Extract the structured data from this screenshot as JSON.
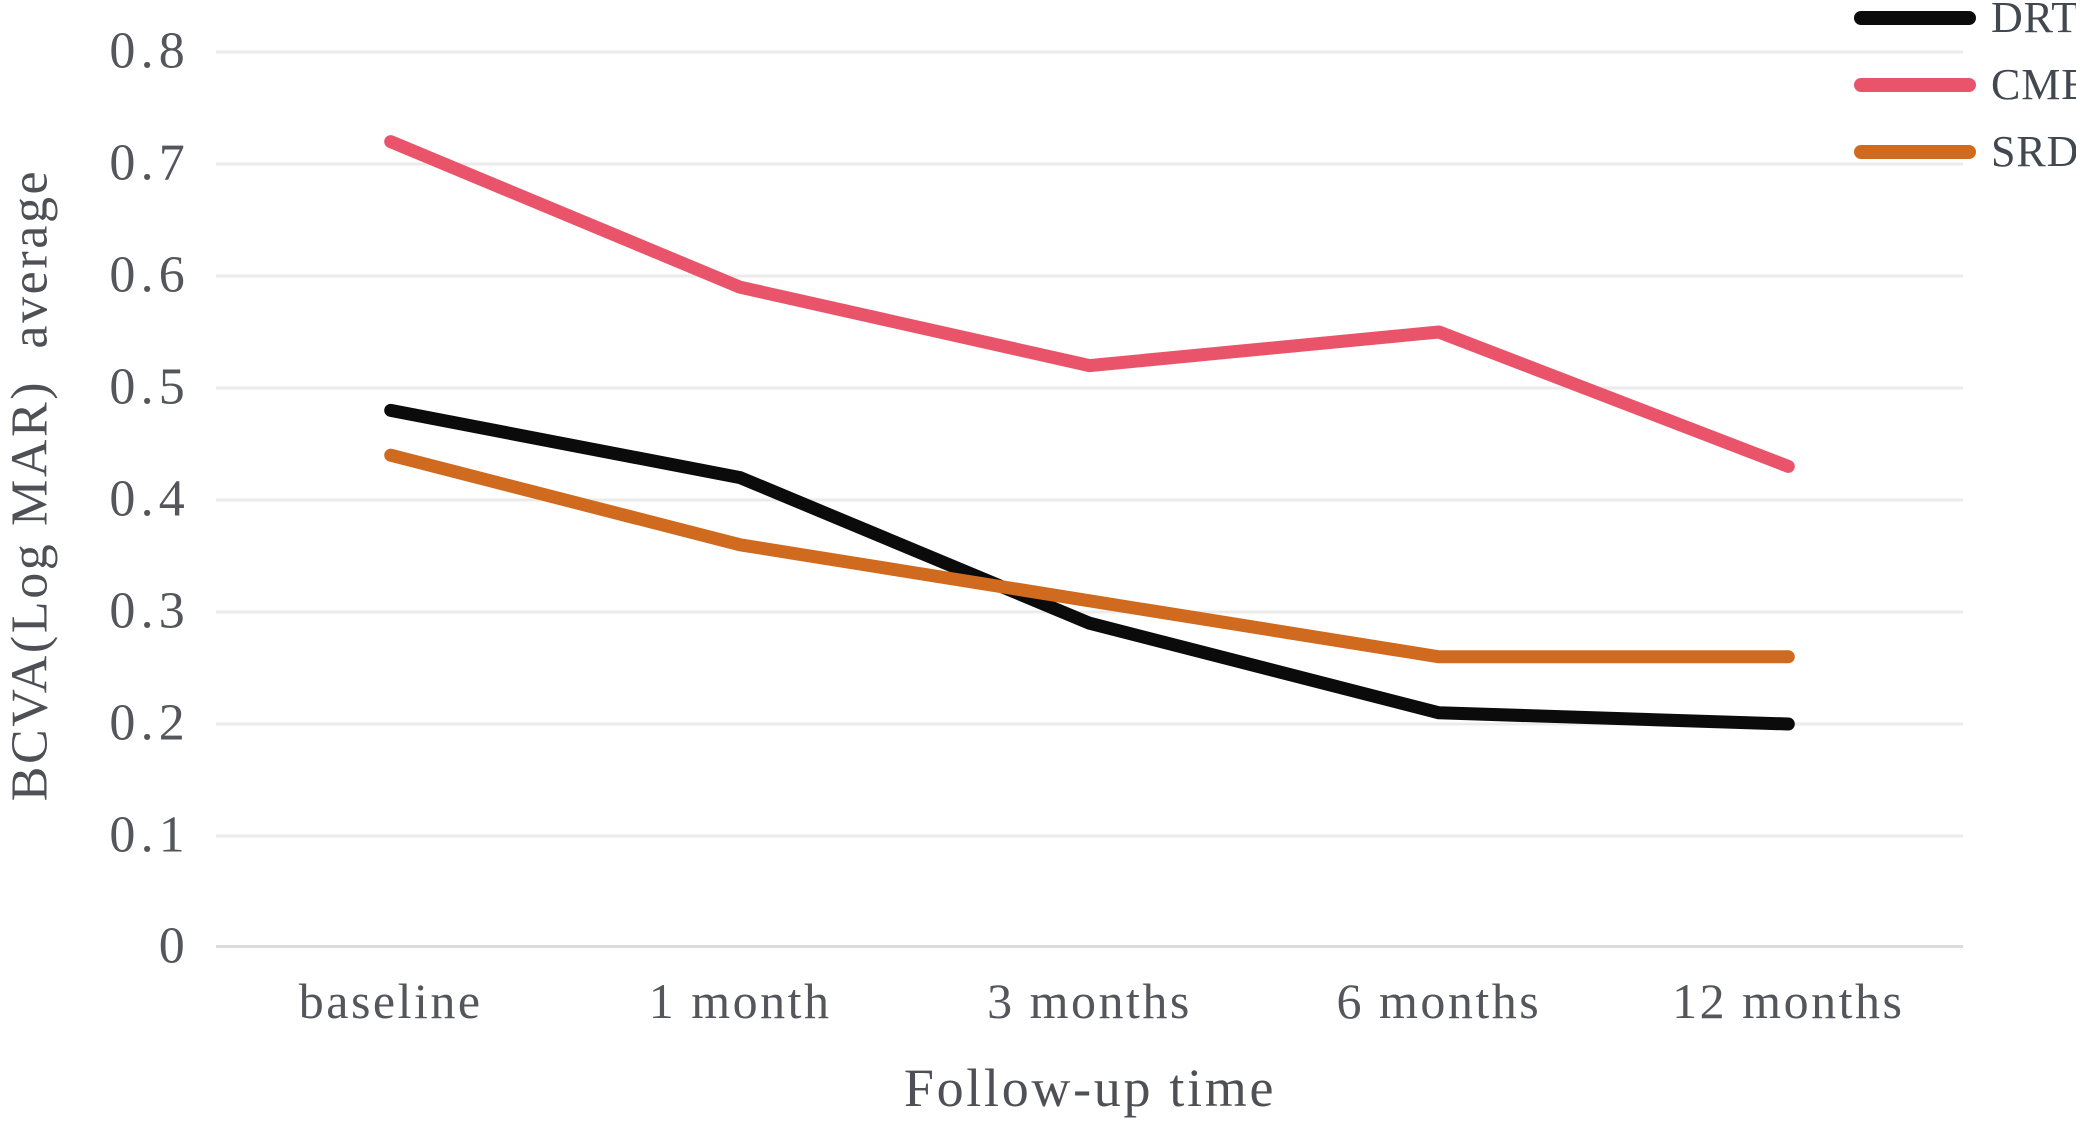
{
  "chart_data": {
    "type": "line",
    "categories": [
      "baseline",
      "1 month",
      "3 months",
      "6 months",
      "12 months"
    ],
    "series": [
      {
        "name": "DRT",
        "color": "#0b0b0b",
        "values": [
          0.48,
          0.42,
          0.29,
          0.21,
          0.2
        ]
      },
      {
        "name": "CME",
        "color": "#e9546a",
        "values": [
          0.72,
          0.59,
          0.52,
          0.55,
          0.43
        ]
      },
      {
        "name": "SRD",
        "color": "#d06a1e",
        "values": [
          0.44,
          0.36,
          0.31,
          0.26,
          0.26
        ]
      }
    ],
    "xlabel": "Follow-up time",
    "ylabel": "BCVA(Log MAR)  average",
    "ylim": [
      0,
      0.8
    ],
    "y_ticks": [
      0,
      0.1,
      0.2,
      0.3,
      0.4,
      0.5,
      0.6,
      0.7,
      0.8
    ],
    "y_tick_labels": [
      "0",
      "0.1",
      "0.2",
      "0.3",
      "0.4",
      "0.5",
      "0.6",
      "0.7",
      "0.8"
    ],
    "grid": "horizontal",
    "gridline_color": "#ebebeb",
    "axis_line_color": "#dcdcdc",
    "legend_position": "top-right",
    "legend_entries": [
      "DRT",
      "CME",
      "SRD"
    ]
  }
}
